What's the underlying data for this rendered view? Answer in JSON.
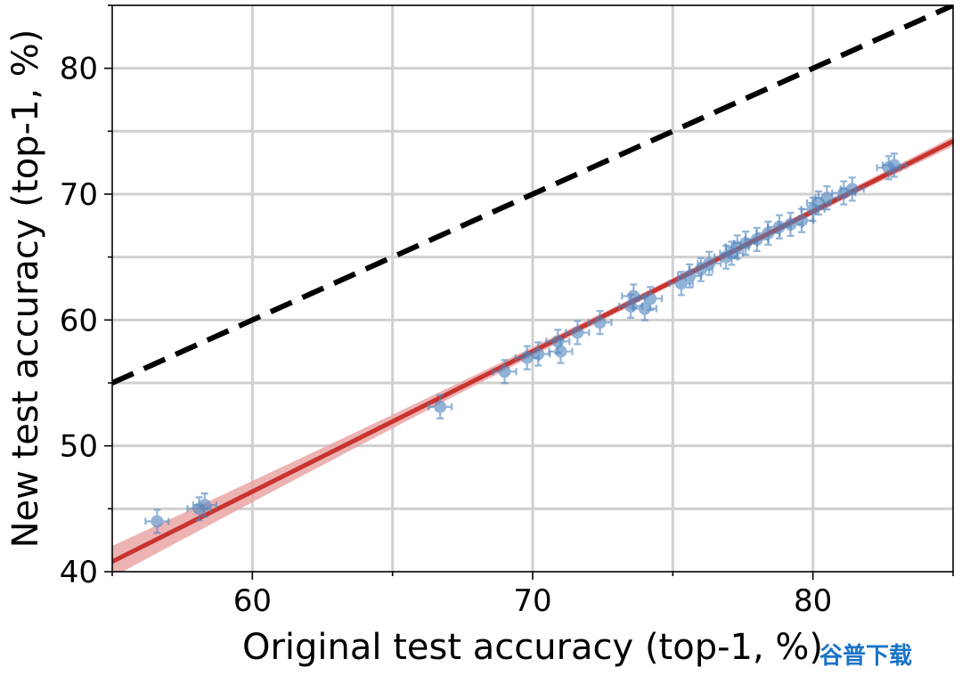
{
  "chart_data": {
    "type": "scatter",
    "xlabel": "Original test accuracy (top-1, %)",
    "ylabel": "New test accuracy (top-1, %)",
    "xlim": [
      55,
      85
    ],
    "ylim": [
      40,
      85
    ],
    "xticks": [
      60,
      70,
      80
    ],
    "yticks": [
      40,
      50,
      60,
      70,
      80
    ],
    "grid": true,
    "colors": {
      "points": "#4f86c0",
      "fit_line": "#c8332e",
      "fit_band": "#e8a0a0",
      "reference": "#000000",
      "grid": "#d0d0d0"
    },
    "reference_line": {
      "style": "dashed",
      "x": [
        55,
        85
      ],
      "y": [
        55,
        85
      ]
    },
    "fit_line": {
      "x": [
        55,
        85
      ],
      "y": [
        40.8,
        74.2
      ]
    },
    "points": [
      {
        "x": 56.6,
        "y": 44.0
      },
      {
        "x": 58.1,
        "y": 45.0
      },
      {
        "x": 58.3,
        "y": 45.3
      },
      {
        "x": 66.7,
        "y": 53.1
      },
      {
        "x": 69.0,
        "y": 55.9
      },
      {
        "x": 69.8,
        "y": 57.0
      },
      {
        "x": 70.2,
        "y": 57.3
      },
      {
        "x": 70.9,
        "y": 58.3
      },
      {
        "x": 71.0,
        "y": 57.5
      },
      {
        "x": 71.6,
        "y": 59.0
      },
      {
        "x": 72.4,
        "y": 59.8
      },
      {
        "x": 73.5,
        "y": 61.1
      },
      {
        "x": 73.6,
        "y": 61.9
      },
      {
        "x": 74.0,
        "y": 60.9
      },
      {
        "x": 74.2,
        "y": 61.7
      },
      {
        "x": 75.3,
        "y": 62.9
      },
      {
        "x": 75.6,
        "y": 63.5
      },
      {
        "x": 76.0,
        "y": 64.0
      },
      {
        "x": 76.3,
        "y": 64.5
      },
      {
        "x": 76.9,
        "y": 65.0
      },
      {
        "x": 77.1,
        "y": 65.3
      },
      {
        "x": 77.3,
        "y": 65.8
      },
      {
        "x": 77.6,
        "y": 66.1
      },
      {
        "x": 78.0,
        "y": 66.4
      },
      {
        "x": 78.4,
        "y": 66.9
      },
      {
        "x": 78.8,
        "y": 67.4
      },
      {
        "x": 79.2,
        "y": 67.6
      },
      {
        "x": 79.6,
        "y": 67.9
      },
      {
        "x": 80.0,
        "y": 68.8
      },
      {
        "x": 80.2,
        "y": 69.3
      },
      {
        "x": 80.5,
        "y": 69.7
      },
      {
        "x": 81.1,
        "y": 70.1
      },
      {
        "x": 81.4,
        "y": 70.4
      },
      {
        "x": 82.7,
        "y": 72.1
      },
      {
        "x": 82.9,
        "y": 72.3
      }
    ]
  },
  "watermark": "谷普下载"
}
